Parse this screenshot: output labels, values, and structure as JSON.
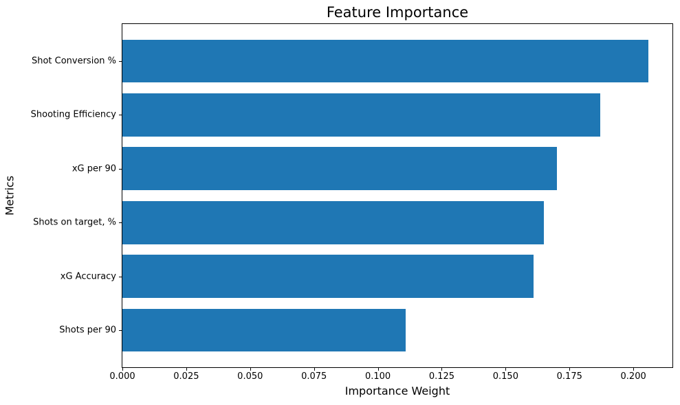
{
  "chart_data": {
    "type": "bar",
    "orientation": "horizontal",
    "title": "Feature Importance",
    "xlabel": "Importance Weight",
    "ylabel": "Metrics",
    "categories": [
      "Shot Conversion %",
      "Shooting Efficiency",
      "xG per 90",
      "Shots on target, %",
      "xG Accuracy",
      "Shots per 90"
    ],
    "values": [
      0.206,
      0.187,
      0.17,
      0.165,
      0.161,
      0.111
    ],
    "xlim": [
      0,
      0.2153
    ],
    "x_ticks": [
      0.0,
      0.025,
      0.05,
      0.075,
      0.1,
      0.125,
      0.15,
      0.175,
      0.2
    ],
    "x_tick_labels": [
      "0.000",
      "0.025",
      "0.050",
      "0.075",
      "0.100",
      "0.125",
      "0.150",
      "0.175",
      "0.200"
    ],
    "bar_color": "#1f77b4",
    "grid": false,
    "legend": false
  }
}
